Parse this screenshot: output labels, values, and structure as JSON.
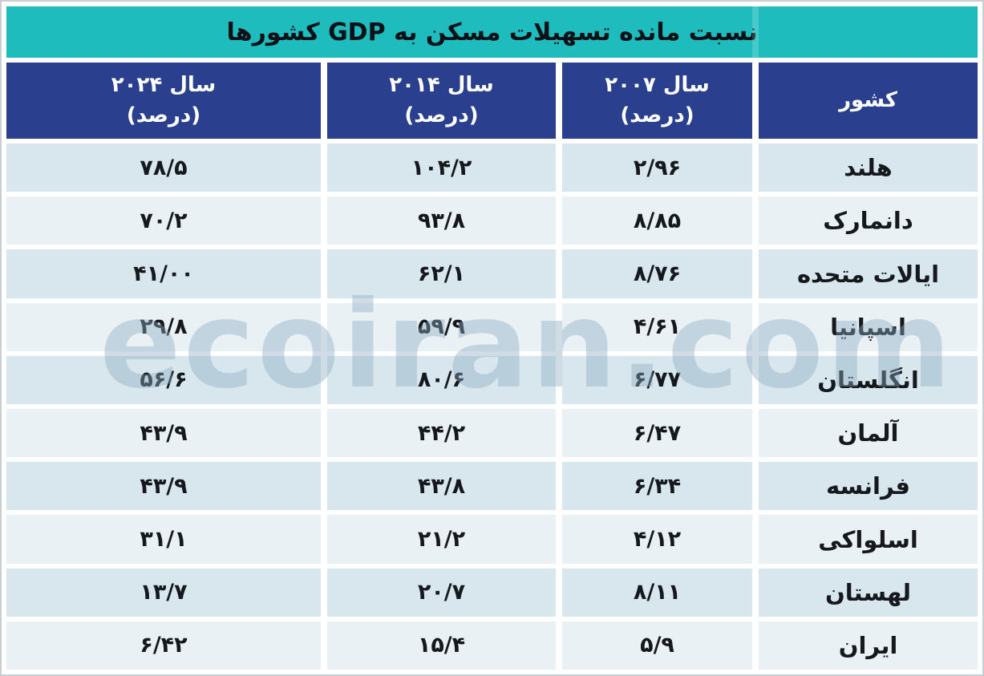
{
  "title": "نسبت مانده تسهیلات مسکن به GDP کشورها",
  "watermark": "ecoiran.com",
  "colors": {
    "title_bg": "#1fbcbd",
    "header_bg": "#2a3f8e",
    "row_odd": "#d8e7ed",
    "row_even": "#e9f1f5",
    "header_text": "#ffffff",
    "body_text": "#15181c",
    "frame_border": "#c9ced3"
  },
  "header": {
    "country": "کشور",
    "y2007_line1": "سال ۲۰۰۷",
    "y2007_line2": "(درصد)",
    "y2014_line1": "سال ۲۰۱۴",
    "y2014_line2": "(درصد)",
    "y2024_line1": "سال ۲۰۲۴",
    "y2024_line2": "(درصد)"
  },
  "rows": [
    {
      "country": "هلند",
      "y2007": "۲/۹۶",
      "y2014": "۱۰۴/۲",
      "y2024": "۷۸/۵"
    },
    {
      "country": "دانمارک",
      "y2007": "۸/۸۵",
      "y2014": "۹۳/۸",
      "y2024": "۷۰/۲"
    },
    {
      "country": "ایالات متحده",
      "y2007": "۸/۷۶",
      "y2014": "۶۲/۱",
      "y2024": "۴۱/۰۰"
    },
    {
      "country": "اسپانیا",
      "y2007": "۴/۶۱",
      "y2014": "۵۹/۹",
      "y2024": "۲۹/۸"
    },
    {
      "country": "انگلستان",
      "y2007": "۶/۷۷",
      "y2014": "۸۰/۶",
      "y2024": "۵۶/۶"
    },
    {
      "country": "آلمان",
      "y2007": "۶/۴۷",
      "y2014": "۴۴/۲",
      "y2024": "۴۳/۹"
    },
    {
      "country": "فرانسه",
      "y2007": "۶/۳۴",
      "y2014": "۴۳/۸",
      "y2024": "۴۳/۹"
    },
    {
      "country": "اسلواکی",
      "y2007": "۴/۱۲",
      "y2014": "۲۱/۲",
      "y2024": "۳۱/۱"
    },
    {
      "country": "لهستان",
      "y2007": "۸/۱۱",
      "y2014": "۲۰/۷",
      "y2024": "۱۳/۷"
    },
    {
      "country": "ایران",
      "y2007": "۵/۹",
      "y2014": "۱۵/۴",
      "y2024": "۶/۴۲"
    }
  ],
  "chart_data": {
    "type": "table",
    "title": "نسبت مانده تسهیلات مسکن به GDP کشورها",
    "columns": [
      "کشور",
      "سال ۲۰۰۷ (درصد)",
      "سال ۲۰۱۴ (درصد)",
      "سال ۲۰۲۴ (درصد)"
    ],
    "rows": [
      [
        "هلند",
        "۲/۹۶",
        "۱۰۴/۲",
        "۷۸/۵"
      ],
      [
        "دانمارک",
        "۸/۸۵",
        "۹۳/۸",
        "۷۰/۲"
      ],
      [
        "ایالات متحده",
        "۸/۷۶",
        "۶۲/۱",
        "۴۱/۰۰"
      ],
      [
        "اسپانیا",
        "۴/۶۱",
        "۵۹/۹",
        "۲۹/۸"
      ],
      [
        "انگلستان",
        "۶/۷۷",
        "۸۰/۶",
        "۵۶/۶"
      ],
      [
        "آلمان",
        "۶/۴۷",
        "۴۴/۲",
        "۴۳/۹"
      ],
      [
        "فرانسه",
        "۶/۳۴",
        "۴۳/۸",
        "۴۳/۹"
      ],
      [
        "اسلواکی",
        "۴/۱۲",
        "۲۱/۲",
        "۳۱/۱"
      ],
      [
        "لهستان",
        "۸/۱۱",
        "۲۰/۷",
        "۱۳/۷"
      ],
      [
        "ایران",
        "۵/۹",
        "۱۵/۴",
        "۶/۴۲"
      ]
    ],
    "rows_latin_digits": [
      [
        "2/96",
        "104/2",
        "78/5"
      ],
      [
        "8/85",
        "93/8",
        "70/2"
      ],
      [
        "8/76",
        "62/1",
        "41/00"
      ],
      [
        "4/61",
        "59/9",
        "29/8"
      ],
      [
        "6/77",
        "80/6",
        "56/6"
      ],
      [
        "6/47",
        "44/2",
        "43/9"
      ],
      [
        "6/34",
        "43/8",
        "43/9"
      ],
      [
        "4/12",
        "21/2",
        "31/1"
      ],
      [
        "8/11",
        "20/7",
        "13/7"
      ],
      [
        "5/9",
        "15/4",
        "6/42"
      ]
    ],
    "decimal_separator": "/",
    "direction": "rtl",
    "legend_position": "none",
    "grid": "cell-gaps-white"
  }
}
